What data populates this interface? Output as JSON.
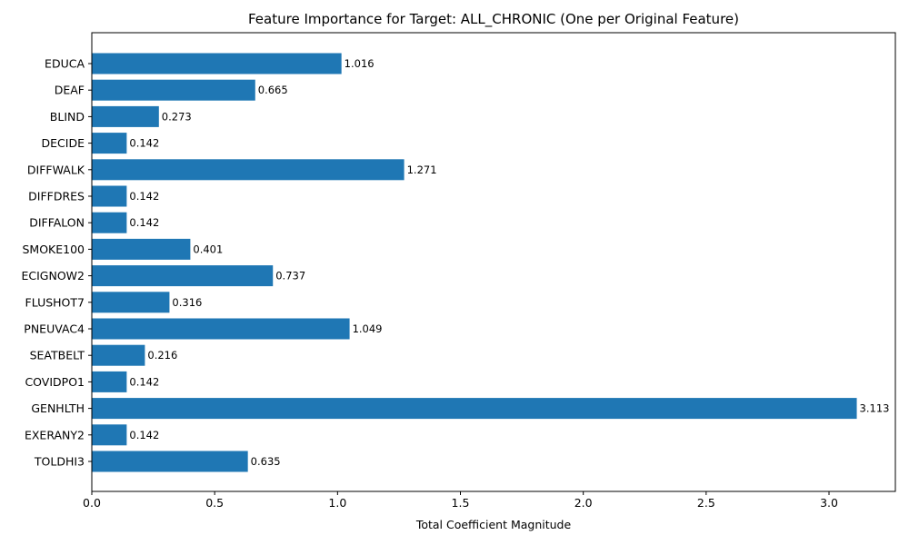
{
  "chart_data": {
    "type": "bar",
    "orientation": "horizontal",
    "title": "Feature Importance for Target: ALL_CHRONIC (One per Original Feature)",
    "xlabel": "Total Coefficient Magnitude",
    "ylabel": "",
    "xlim": [
      0,
      3.27
    ],
    "xticks": [
      "0.0",
      "0.5",
      "1.0",
      "1.5",
      "2.0",
      "2.5",
      "3.0"
    ],
    "grid": false,
    "bar_color": "#1f77b4",
    "categories": [
      "EDUCA",
      "DEAF",
      "BLIND",
      "DECIDE",
      "DIFFWALK",
      "DIFFDRES",
      "DIFFALON",
      "SMOKE100",
      "ECIGNOW2",
      "FLUSHOT7",
      "PNEUVAC4",
      "SEATBELT",
      "COVIDPO1",
      "GENHLTH",
      "EXERANY2",
      "TOLDHI3"
    ],
    "values": [
      1.016,
      0.665,
      0.273,
      0.142,
      1.271,
      0.142,
      0.142,
      0.401,
      0.737,
      0.316,
      1.049,
      0.216,
      0.142,
      3.113,
      0.142,
      0.635
    ],
    "value_labels": [
      "1.016",
      "0.665",
      "0.273",
      "0.142",
      "1.271",
      "0.142",
      "0.142",
      "0.401",
      "0.737",
      "0.316",
      "1.049",
      "0.216",
      "0.142",
      "3.113",
      "0.142",
      "0.635"
    ]
  }
}
